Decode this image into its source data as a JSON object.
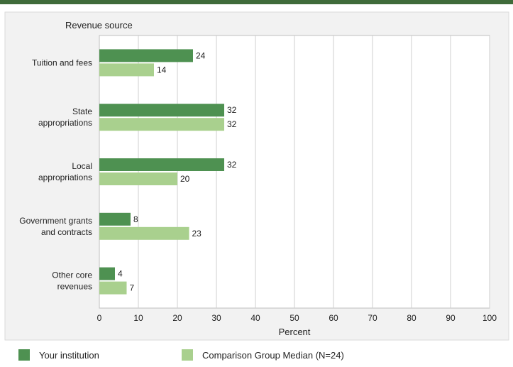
{
  "colors": {
    "top_band": "#3f6b3a",
    "series_primary": "#4e9151",
    "series_secondary": "#a9d08e",
    "panel_bg": "#f2f2f2",
    "grid": "#cfcfcf"
  },
  "chart_data": {
    "type": "bar",
    "orientation": "horizontal",
    "y_axis_title": "Revenue source",
    "xlabel": "Percent",
    "xlim": [
      0,
      100
    ],
    "xticks": [
      0,
      10,
      20,
      30,
      40,
      50,
      60,
      70,
      80,
      90,
      100
    ],
    "categories": [
      [
        "Tuition and fees"
      ],
      [
        "State",
        "appropriations"
      ],
      [
        "Local",
        "appropriations"
      ],
      [
        "Government grants",
        "and contracts"
      ],
      [
        "Other core",
        "revenues"
      ]
    ],
    "series": [
      {
        "name": "Your institution",
        "values": [
          24,
          32,
          32,
          8,
          4
        ]
      },
      {
        "name": "Comparison Group Median (N=24)",
        "values": [
          14,
          32,
          20,
          23,
          7
        ]
      }
    ],
    "grid": true,
    "legend_position": "bottom"
  }
}
